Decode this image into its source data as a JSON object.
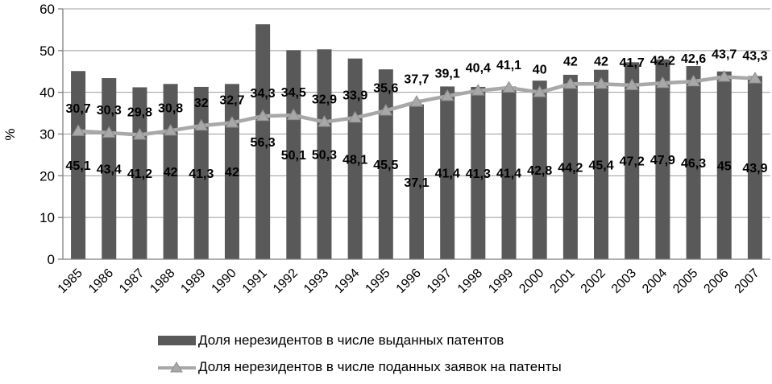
{
  "chart_data": {
    "type": "bar+line",
    "title": "",
    "ylabel": "%",
    "ylim": [
      0,
      60
    ],
    "yticks": [
      0,
      10,
      20,
      30,
      40,
      50,
      60
    ],
    "grid": true,
    "legend_position": "bottom-left",
    "background_color": "#ffffff",
    "axis_color": "#7f7f7f",
    "gridline_color": "#9c9c9c",
    "text_color": "#000000",
    "categories": [
      "1985",
      "1986",
      "1987",
      "1988",
      "1989",
      "1990",
      "1991",
      "1992",
      "1993",
      "1994",
      "1995",
      "1996",
      "1997",
      "1998",
      "1999",
      "2000",
      "2001",
      "2002",
      "2003",
      "2004",
      "2005",
      "2006",
      "2007"
    ],
    "series": [
      {
        "name": "Доля нерезидентов в числе выданных патентов",
        "type": "bar",
        "color": "#595959",
        "values": [
          45.1,
          43.4,
          41.2,
          42,
          41.3,
          42,
          56.3,
          50.1,
          50.3,
          48.1,
          45.5,
          37.1,
          41.4,
          41.3,
          41.4,
          42.8,
          44.2,
          45.4,
          47.2,
          47.9,
          46.3,
          45,
          43.9
        ],
        "labels": [
          "45,1",
          "43,4",
          "41,2",
          "42",
          "41,3",
          "42",
          "56,3",
          "50,1",
          "50,3",
          "48,1",
          "45,5",
          "37,1",
          "41,4",
          "41,3",
          "41,4",
          "42,8",
          "44,2",
          "45,4",
          "47,2",
          "47,9",
          "46,3",
          "45",
          "43,9"
        ]
      },
      {
        "name": "Доля нерезидентов в числе поданных заявок на патенты",
        "type": "line",
        "color": "#a8a8a8",
        "marker": "triangle",
        "marker_edge_color": "#8f8f8f",
        "values": [
          30.7,
          30.3,
          29.8,
          30.8,
          32,
          32.7,
          34.3,
          34.5,
          32.9,
          33.9,
          35.6,
          37.7,
          39.1,
          40.4,
          41.1,
          40,
          42,
          42,
          41.7,
          42.2,
          42.6,
          43.7,
          43.3
        ],
        "labels": [
          "30,7",
          "30,3",
          "29,8",
          "30,8",
          "32",
          "32,7",
          "34,3",
          "34,5",
          "32,9",
          "33,9",
          "35,6",
          "37,7",
          "39,1",
          "40,4",
          "41,1",
          "40",
          "42",
          "42",
          "41,7",
          "42,2",
          "42,6",
          "43,7",
          "43,3"
        ]
      }
    ]
  }
}
